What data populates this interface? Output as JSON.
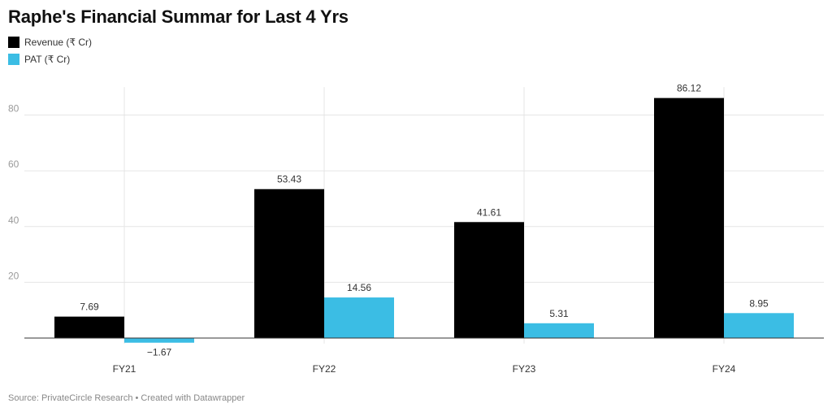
{
  "chart_data": {
    "type": "bar",
    "title": "Raphe's Financial Summar for Last 4 Yrs",
    "categories": [
      "FY21",
      "FY22",
      "FY23",
      "FY24"
    ],
    "series": [
      {
        "name": "Revenue (₹ Cr)",
        "color": "#000000",
        "values": [
          7.69,
          53.43,
          41.61,
          86.12
        ],
        "labels": [
          "7.69",
          "53.43",
          "41.61",
          "86.12"
        ]
      },
      {
        "name": "PAT (₹ Cr)",
        "color": "#3bbde4",
        "values": [
          -1.67,
          14.56,
          5.31,
          8.95
        ],
        "labels": [
          "−1.67",
          "14.56",
          "5.31",
          "8.95"
        ]
      }
    ],
    "yticks": [
      20,
      40,
      60,
      80
    ],
    "ylim": [
      -2,
      90
    ],
    "grid": true,
    "legend_position": "top-left"
  },
  "footer": "Source: PrivateCircle Research • Created with Datawrapper"
}
